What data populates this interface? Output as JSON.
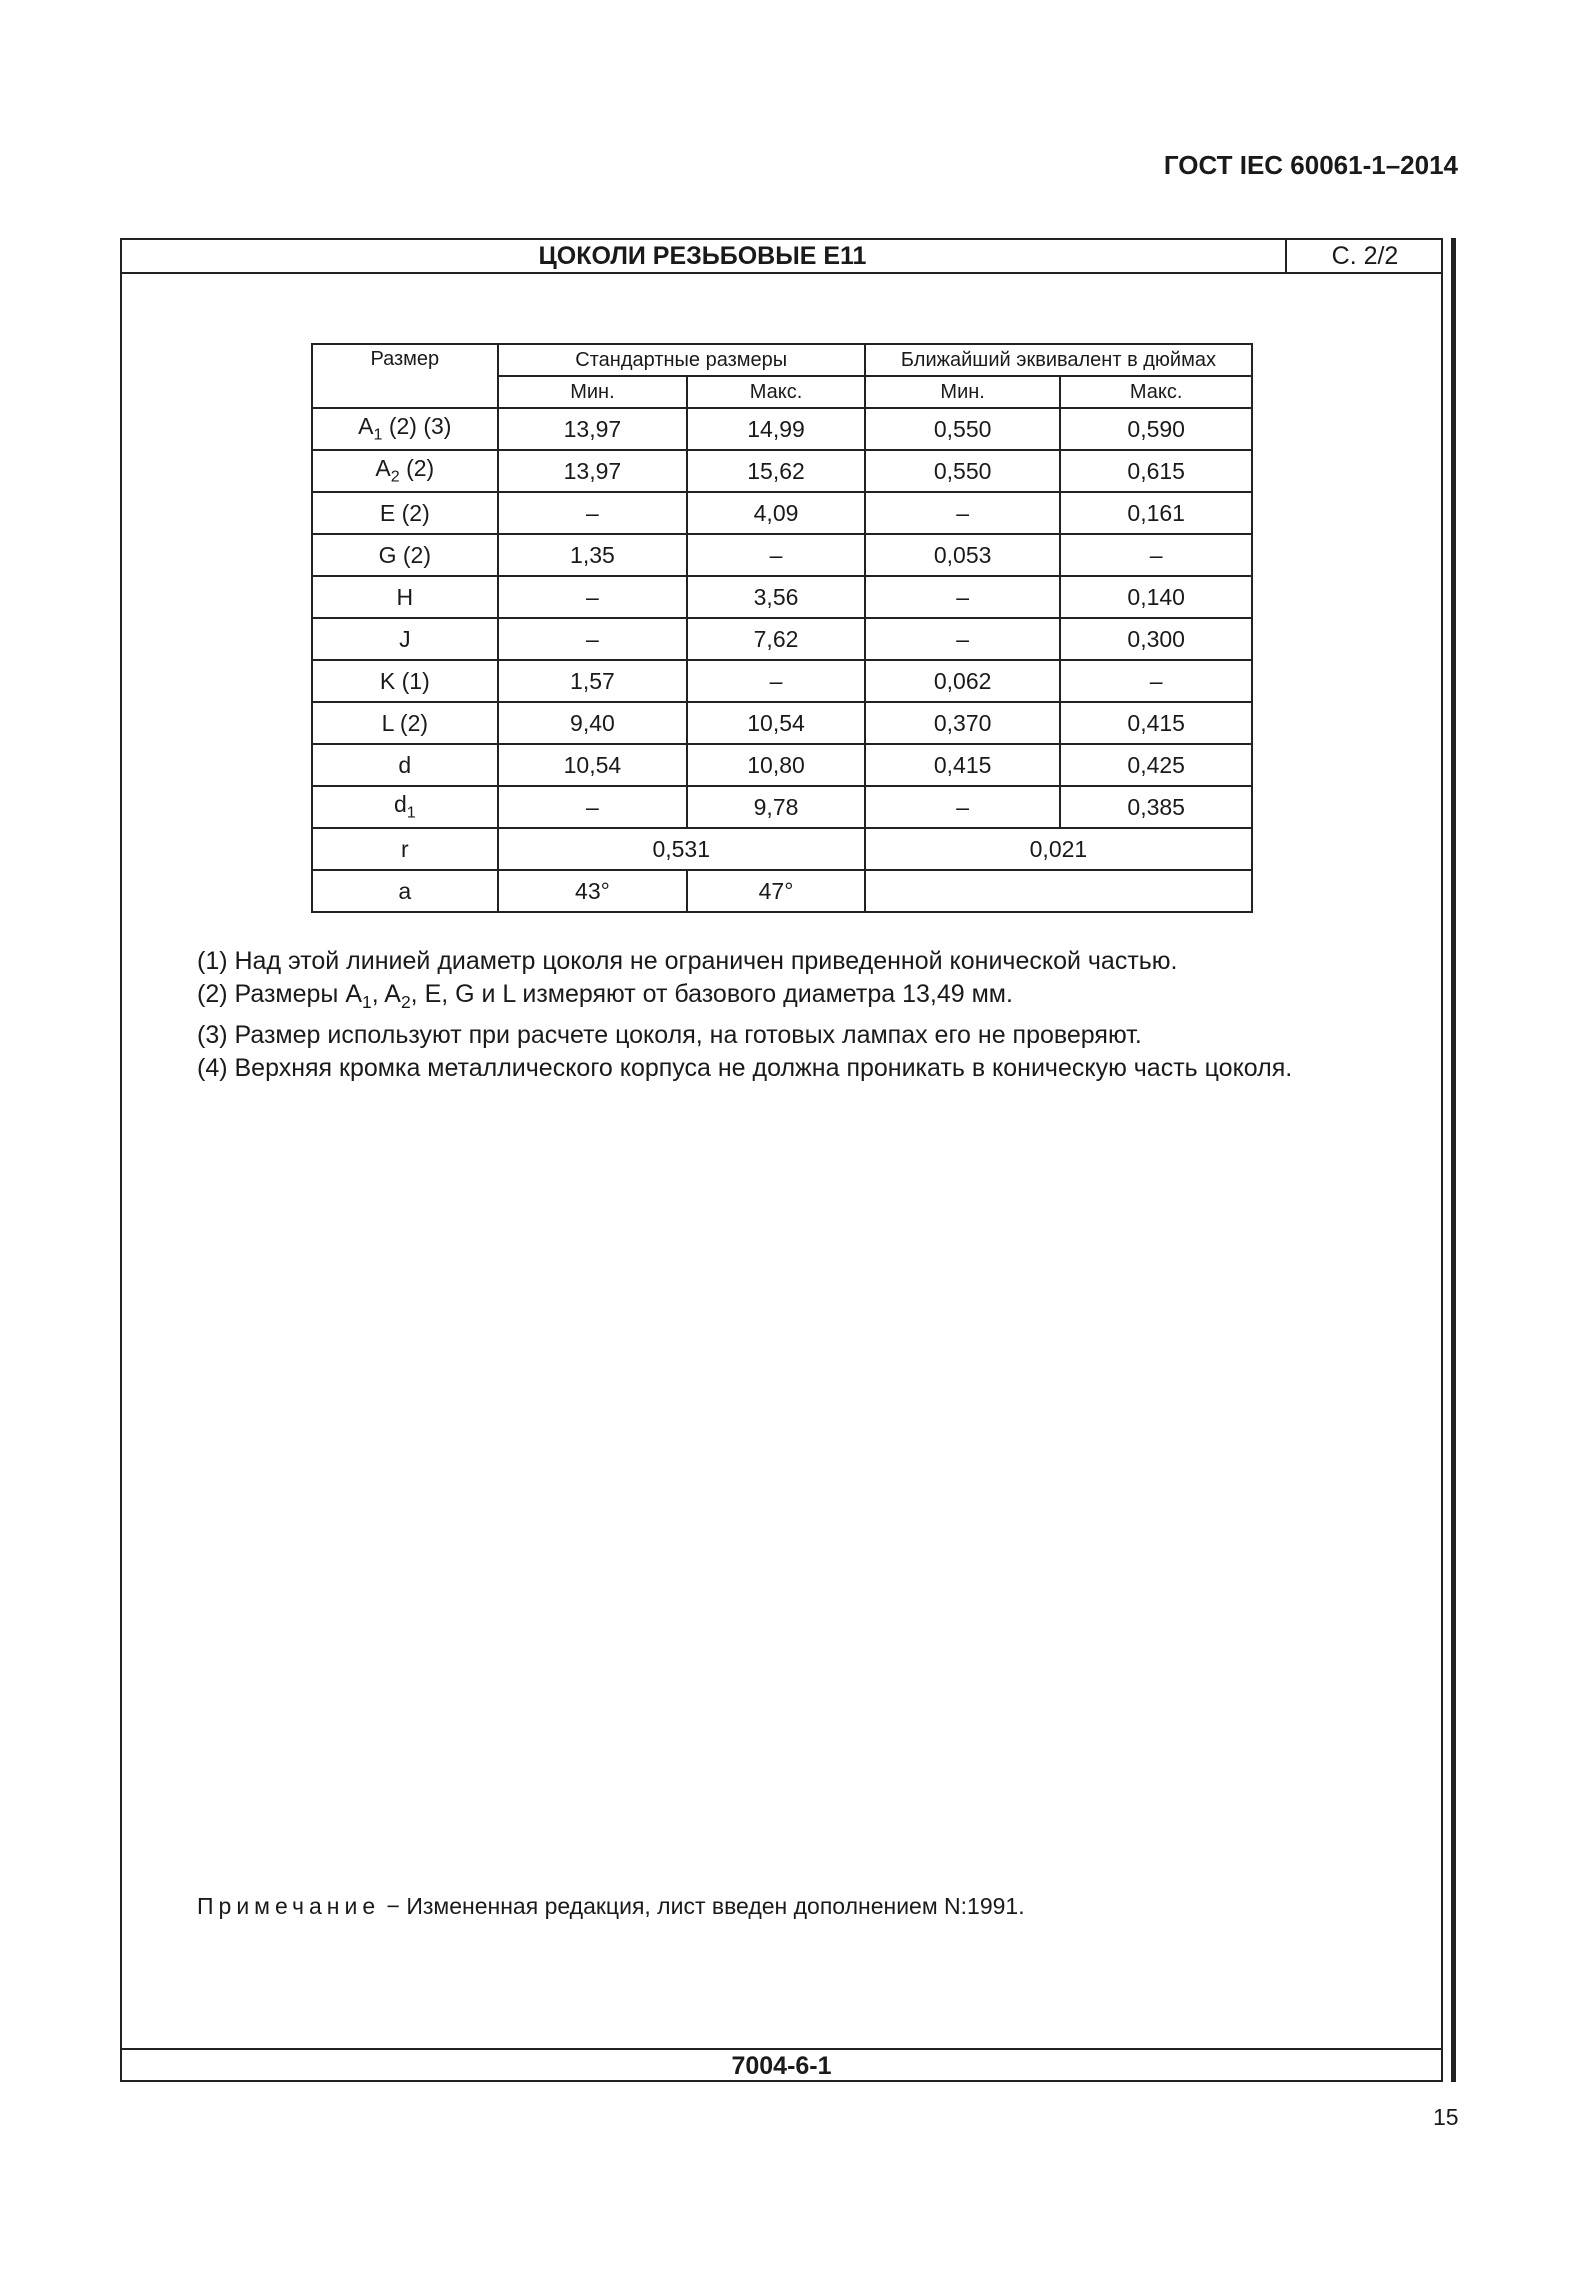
{
  "document_code": "ГОСТ IEC 60061-1–2014",
  "sheet_title": "ЦОКОЛИ РЕЗЬБОВЫЕ E11",
  "sheet_number": "С. 2/2",
  "table": {
    "header": {
      "size": "Размер",
      "standard": "Стандартные размеры",
      "inches": "Ближайший эквивалент в дюймах",
      "min": "Мин.",
      "max": "Макс."
    },
    "rows": [
      {
        "name": "A",
        "sub": "1",
        "suffix": " (2) (3)",
        "cells": [
          "13,97",
          "14,99",
          "0,550",
          "0,590"
        ]
      },
      {
        "name": "A",
        "sub": "2",
        "suffix": " (2)",
        "cells": [
          "13,97",
          "15,62",
          "0,550",
          "0,615"
        ]
      },
      {
        "name": "E (2)",
        "cells": [
          "–",
          "4,09",
          "–",
          "0,161"
        ]
      },
      {
        "name": "G (2)",
        "cells": [
          "1,35",
          "–",
          "0,053",
          "–"
        ]
      },
      {
        "name": "H",
        "cells": [
          "–",
          "3,56",
          "–",
          "0,140"
        ]
      },
      {
        "name": "J",
        "cells": [
          "–",
          "7,62",
          "–",
          "0,300"
        ]
      },
      {
        "name": "K (1)",
        "cells": [
          "1,57",
          "–",
          "0,062",
          "–"
        ]
      },
      {
        "name": "L (2)",
        "cells": [
          "9,40",
          "10,54",
          "0,370",
          "0,415"
        ]
      },
      {
        "name": "d",
        "cells": [
          "10,54",
          "10,80",
          "0,415",
          "0,425"
        ]
      },
      {
        "name": "d",
        "sub": "1",
        "suffix": "",
        "cells": [
          "–",
          "9,78",
          "–",
          "0,385"
        ]
      },
      {
        "name": "r",
        "merged": [
          "0,531",
          "0,021"
        ]
      },
      {
        "name": "a",
        "cells": [
          "43°",
          "47°",
          ""
        ]
      }
    ]
  },
  "notes": {
    "n1": "(1) Над этой линией диаметр цоколя не ограничен приведенной конической частью.",
    "n2a": "(2) Размеры A",
    "n2s1": "1",
    "n2b": ", A",
    "n2s2": "2",
    "n2c": ", E, G и L измеряют от базового диаметра 13,49 мм.",
    "n3": "(3) Размер используют при расчете цоколя, на готовых лампах его не проверяют.",
    "n4": "(4) Верхняя кромка металлического корпуса не должна проникать в коническую часть цоколя."
  },
  "remark": {
    "label": "Примечание",
    "text": " − Измененная редакция, лист введен дополнением N:1991."
  },
  "footer_code": "7004-6-1",
  "page_number": "15"
}
